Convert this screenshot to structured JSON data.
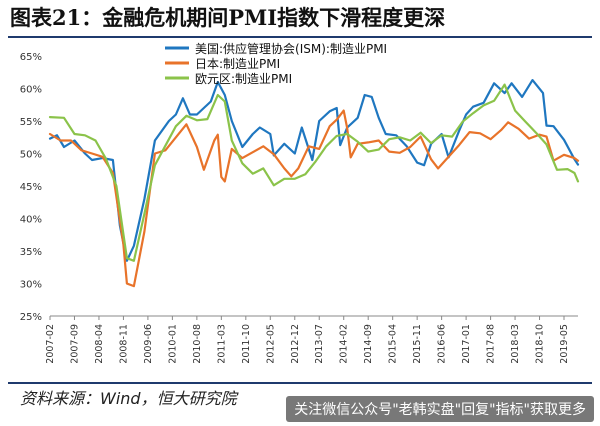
{
  "title": "图表21：金融危机期间PMI指数下滑程度更深",
  "source": "资料来源：Wind，恒大研究院",
  "watermark": "关注微信公众号\"老韩实盘\"回复\"指标\"获取更多",
  "colors": {
    "us": "#1f77c0",
    "jp": "#e8732a",
    "eu": "#8bc34a",
    "axis_text": "#333333",
    "grid": "#d0d0d0",
    "rule": "#1f3a6d"
  },
  "chart_data": {
    "type": "line",
    "title": "",
    "xlabel": "",
    "ylabel": "",
    "ylim": [
      25,
      65
    ],
    "ytick_labels": [
      "25%",
      "30%",
      "35%",
      "40%",
      "45%",
      "50%",
      "55%",
      "60%",
      "65%"
    ],
    "xlim": [
      "2007-02",
      "2019-09"
    ],
    "xtick_labels": [
      "2007-02",
      "2007-09",
      "2008-04",
      "2008-11",
      "2009-06",
      "2010-01",
      "2010-08",
      "2011-03",
      "2011-10",
      "2012-05",
      "2012-12",
      "2013-07",
      "2014-02",
      "2014-09",
      "2015-04",
      "2015-11",
      "2016-06",
      "2017-01",
      "2017-08",
      "2018-03",
      "2018-10",
      "2019-05"
    ],
    "grid": false,
    "legend_position": "top",
    "series": [
      {
        "name": "美国:供应管理协会(ISM):制造业PMI",
        "color": "#1f77c0",
        "points": [
          [
            "2007-02",
            52.3
          ],
          [
            "2007-04",
            52.8
          ],
          [
            "2007-06",
            51.0
          ],
          [
            "2007-09",
            52.0
          ],
          [
            "2007-12",
            50.0
          ],
          [
            "2008-02",
            49.0
          ],
          [
            "2008-05",
            49.3
          ],
          [
            "2008-08",
            49.0
          ],
          [
            "2008-10",
            38.9
          ],
          [
            "2008-12",
            33.5
          ],
          [
            "2009-02",
            35.8
          ],
          [
            "2009-05",
            43.0
          ],
          [
            "2009-08",
            52.0
          ],
          [
            "2009-12",
            55.0
          ],
          [
            "2010-02",
            56.0
          ],
          [
            "2010-04",
            58.5
          ],
          [
            "2010-06",
            56.0
          ],
          [
            "2010-08",
            56.0
          ],
          [
            "2010-12",
            58.0
          ],
          [
            "2011-02",
            61.0
          ],
          [
            "2011-04",
            59.0
          ],
          [
            "2011-06",
            55.0
          ],
          [
            "2011-09",
            51.0
          ],
          [
            "2011-12",
            53.0
          ],
          [
            "2012-02",
            54.0
          ],
          [
            "2012-05",
            53.0
          ],
          [
            "2012-06",
            49.7
          ],
          [
            "2012-09",
            51.5
          ],
          [
            "2012-12",
            50.0
          ],
          [
            "2013-02",
            54.0
          ],
          [
            "2013-05",
            49.0
          ],
          [
            "2013-07",
            55.0
          ],
          [
            "2013-10",
            56.5
          ],
          [
            "2013-12",
            57.0
          ],
          [
            "2014-01",
            51.3
          ],
          [
            "2014-03",
            54.0
          ],
          [
            "2014-06",
            55.5
          ],
          [
            "2014-08",
            59.0
          ],
          [
            "2014-10",
            58.7
          ],
          [
            "2014-12",
            55.5
          ],
          [
            "2015-02",
            53.0
          ],
          [
            "2015-05",
            52.8
          ],
          [
            "2015-08",
            51.1
          ],
          [
            "2015-11",
            48.6
          ],
          [
            "2016-01",
            48.2
          ],
          [
            "2016-03",
            51.5
          ],
          [
            "2016-06",
            53.0
          ],
          [
            "2016-08",
            49.4
          ],
          [
            "2016-11",
            53.5
          ],
          [
            "2017-01",
            56.0
          ],
          [
            "2017-03",
            57.2
          ],
          [
            "2017-06",
            57.8
          ],
          [
            "2017-09",
            60.8
          ],
          [
            "2017-12",
            59.3
          ],
          [
            "2018-02",
            60.8
          ],
          [
            "2018-05",
            58.7
          ],
          [
            "2018-08",
            61.3
          ],
          [
            "2018-11",
            59.3
          ],
          [
            "2018-12",
            54.3
          ],
          [
            "2019-02",
            54.2
          ],
          [
            "2019-05",
            52.1
          ],
          [
            "2019-08",
            49.1
          ],
          [
            "2019-09",
            48.3
          ]
        ]
      },
      {
        "name": "日本:制造业PMI",
        "color": "#e8732a",
        "points": [
          [
            "2007-02",
            53.0
          ],
          [
            "2007-05",
            52.0
          ],
          [
            "2007-08",
            52.0
          ],
          [
            "2007-11",
            50.5
          ],
          [
            "2008-02",
            50.0
          ],
          [
            "2008-05",
            49.5
          ],
          [
            "2008-08",
            47.0
          ],
          [
            "2008-11",
            36.0
          ],
          [
            "2008-12",
            30.0
          ],
          [
            "2009-02",
            29.6
          ],
          [
            "2009-05",
            38.0
          ],
          [
            "2009-08",
            50.0
          ],
          [
            "2009-11",
            50.5
          ],
          [
            "2010-02",
            52.5
          ],
          [
            "2010-05",
            54.5
          ],
          [
            "2010-08",
            51.0
          ],
          [
            "2010-10",
            47.5
          ],
          [
            "2011-01",
            52.0
          ],
          [
            "2011-02",
            52.9
          ],
          [
            "2011-03",
            46.4
          ],
          [
            "2011-04",
            45.7
          ],
          [
            "2011-06",
            50.7
          ],
          [
            "2011-09",
            49.3
          ],
          [
            "2011-12",
            50.2
          ],
          [
            "2012-03",
            51.1
          ],
          [
            "2012-06",
            49.9
          ],
          [
            "2012-09",
            47.7
          ],
          [
            "2012-11",
            46.5
          ],
          [
            "2013-01",
            47.7
          ],
          [
            "2013-04",
            51.1
          ],
          [
            "2013-07",
            50.7
          ],
          [
            "2013-10",
            54.2
          ],
          [
            "2013-12",
            55.2
          ],
          [
            "2014-02",
            56.6
          ],
          [
            "2014-03",
            53.9
          ],
          [
            "2014-04",
            49.4
          ],
          [
            "2014-06",
            51.5
          ],
          [
            "2014-09",
            51.7
          ],
          [
            "2014-12",
            52.0
          ],
          [
            "2015-03",
            50.3
          ],
          [
            "2015-06",
            50.1
          ],
          [
            "2015-09",
            51.0
          ],
          [
            "2015-12",
            52.6
          ],
          [
            "2016-03",
            49.1
          ],
          [
            "2016-05",
            47.7
          ],
          [
            "2016-08",
            49.5
          ],
          [
            "2016-11",
            51.3
          ],
          [
            "2017-02",
            53.3
          ],
          [
            "2017-05",
            53.1
          ],
          [
            "2017-08",
            52.2
          ],
          [
            "2017-11",
            53.6
          ],
          [
            "2018-01",
            54.8
          ],
          [
            "2018-04",
            53.8
          ],
          [
            "2018-07",
            52.3
          ],
          [
            "2018-10",
            52.9
          ],
          [
            "2018-12",
            52.6
          ],
          [
            "2019-02",
            48.9
          ],
          [
            "2019-05",
            49.8
          ],
          [
            "2019-08",
            49.3
          ],
          [
            "2019-09",
            48.9
          ]
        ]
      },
      {
        "name": "欧元区:制造业PMI",
        "color": "#8bc34a",
        "points": [
          [
            "2007-02",
            55.6
          ],
          [
            "2007-06",
            55.5
          ],
          [
            "2007-09",
            53.0
          ],
          [
            "2007-12",
            52.8
          ],
          [
            "2008-03",
            52.0
          ],
          [
            "2008-06",
            49.2
          ],
          [
            "2008-09",
            45.0
          ],
          [
            "2008-12",
            33.9
          ],
          [
            "2009-02",
            33.5
          ],
          [
            "2009-05",
            40.7
          ],
          [
            "2009-08",
            48.2
          ],
          [
            "2009-11",
            51.2
          ],
          [
            "2010-02",
            54.2
          ],
          [
            "2010-05",
            55.8
          ],
          [
            "2010-08",
            55.1
          ],
          [
            "2010-11",
            55.3
          ],
          [
            "2011-02",
            59.0
          ],
          [
            "2011-04",
            58.0
          ],
          [
            "2011-06",
            52.0
          ],
          [
            "2011-09",
            48.5
          ],
          [
            "2011-12",
            46.9
          ],
          [
            "2012-03",
            47.7
          ],
          [
            "2012-06",
            45.1
          ],
          [
            "2012-09",
            46.1
          ],
          [
            "2012-12",
            46.1
          ],
          [
            "2013-03",
            46.8
          ],
          [
            "2013-06",
            48.8
          ],
          [
            "2013-09",
            51.1
          ],
          [
            "2013-12",
            52.7
          ],
          [
            "2014-03",
            53.0
          ],
          [
            "2014-06",
            51.8
          ],
          [
            "2014-09",
            50.3
          ],
          [
            "2014-12",
            50.6
          ],
          [
            "2015-03",
            52.2
          ],
          [
            "2015-06",
            52.5
          ],
          [
            "2015-09",
            52.0
          ],
          [
            "2015-12",
            53.2
          ],
          [
            "2016-03",
            51.6
          ],
          [
            "2016-06",
            52.8
          ],
          [
            "2016-09",
            52.6
          ],
          [
            "2016-12",
            54.9
          ],
          [
            "2017-03",
            56.2
          ],
          [
            "2017-06",
            57.4
          ],
          [
            "2017-09",
            58.1
          ],
          [
            "2017-12",
            60.6
          ],
          [
            "2018-03",
            56.6
          ],
          [
            "2018-06",
            54.9
          ],
          [
            "2018-09",
            53.2
          ],
          [
            "2018-12",
            51.4
          ],
          [
            "2019-03",
            47.5
          ],
          [
            "2019-06",
            47.6
          ],
          [
            "2019-08",
            47.0
          ],
          [
            "2019-09",
            45.7
          ]
        ]
      }
    ]
  }
}
